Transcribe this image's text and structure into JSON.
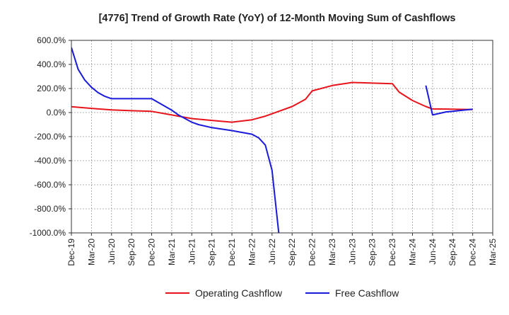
{
  "chart_data": {
    "type": "line",
    "title": "[4776]  Trend of Growth Rate (YoY) of 12-Month Moving Sum of Cashflows",
    "xlabel": "",
    "ylabel": "",
    "ylim": [
      -1000,
      600
    ],
    "y_ticks": [
      600,
      400,
      200,
      0,
      -200,
      -400,
      -600,
      -800,
      -1000
    ],
    "y_tick_labels": [
      "600.0%",
      "400.0%",
      "200.0%",
      "0.0%",
      "-200.0%",
      "-400.0%",
      "-600.0%",
      "-800.0%",
      "-1000.0%"
    ],
    "x_tick_labels": [
      "Dec-19",
      "Mar-20",
      "Jun-20",
      "Sep-20",
      "Dec-20",
      "Mar-21",
      "Jun-21",
      "Sep-21",
      "Dec-21",
      "Mar-22",
      "Jun-22",
      "Sep-22",
      "Dec-22",
      "Mar-23",
      "Jun-23",
      "Sep-23",
      "Dec-23",
      "Mar-24",
      "Jun-24",
      "Sep-24",
      "Dec-24",
      "Mar-25"
    ],
    "grid": true,
    "legend_position": "bottom-center",
    "series": [
      {
        "name": "Operating Cashflow",
        "color": "#e8141c",
        "points": [
          [
            "Dec-19",
            48
          ],
          [
            "Mar-20",
            35
          ],
          [
            "Jun-20",
            22
          ],
          [
            "Sep-20",
            15
          ],
          [
            "Dec-20",
            10
          ],
          [
            "Mar-21",
            -20
          ],
          [
            "Jun-21",
            -50
          ],
          [
            "Sep-21",
            -65
          ],
          [
            "Dec-21",
            -80
          ],
          [
            "Mar-22",
            -60
          ],
          [
            "May-22",
            -30
          ],
          [
            "Jun-22",
            -10
          ],
          [
            "Sep-22",
            50
          ],
          [
            "Nov-22",
            110
          ],
          [
            "Dec-22",
            180
          ],
          [
            "Mar-23",
            225
          ],
          [
            "Jun-23",
            250
          ],
          [
            "Sep-23",
            245
          ],
          [
            "Dec-23",
            240
          ],
          [
            "Jan-24",
            170
          ],
          [
            "Mar-24",
            100
          ],
          [
            "May-24",
            50
          ],
          [
            "Jun-24",
            30
          ],
          [
            "Sep-24",
            28
          ],
          [
            "Dec-24",
            25
          ]
        ]
      },
      {
        "name": "Free Cashflow",
        "color": "#1a1adb",
        "segments": [
          [
            [
              "Dec-19",
              540
            ],
            [
              "Jan-20",
              360
            ],
            [
              "Feb-20",
              270
            ],
            [
              "Mar-20",
              210
            ],
            [
              "Apr-20",
              165
            ],
            [
              "May-20",
              135
            ],
            [
              "Jun-20",
              115
            ],
            [
              "Sep-20",
              115
            ],
            [
              "Dec-20",
              115
            ],
            [
              "Mar-21",
              20
            ],
            [
              "Apr-21",
              -20
            ],
            [
              "Jun-21",
              -80
            ],
            [
              "Jul-21",
              -100
            ],
            [
              "Sep-21",
              -125
            ],
            [
              "Dec-21",
              -150
            ],
            [
              "Mar-22",
              -180
            ],
            [
              "Apr-22",
              -210
            ],
            [
              "May-22",
              -270
            ],
            [
              "Jun-22",
              -480
            ],
            [
              "Jul-22",
              -1000
            ]
          ],
          [
            [
              "May-24",
              225
            ],
            [
              "Jun-24",
              -20
            ],
            [
              "Aug-24",
              5
            ],
            [
              "Sep-24",
              10
            ],
            [
              "Dec-24",
              28
            ]
          ]
        ]
      }
    ]
  }
}
